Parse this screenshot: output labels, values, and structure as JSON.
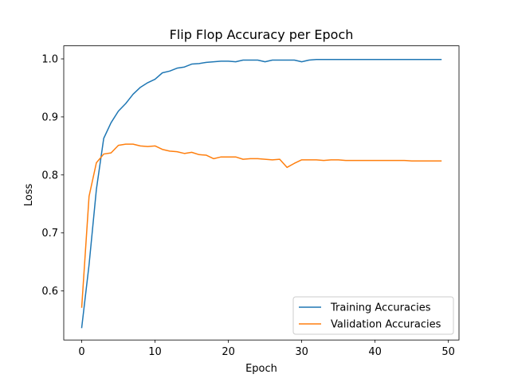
{
  "chart_data": {
    "type": "line",
    "title": "Flip Flop Accuracy per Epoch",
    "xlabel": "Epoch",
    "ylabel": "Loss",
    "xlim": [
      -2.45,
      51.45
    ],
    "ylim": [
      0.5155,
      1.0225
    ],
    "xticks": [
      0,
      10,
      20,
      30,
      40,
      50
    ],
    "xtick_labels": [
      "0",
      "10",
      "20",
      "30",
      "40",
      "50"
    ],
    "yticks": [
      0.6,
      0.7,
      0.8,
      0.9,
      1.0
    ],
    "ytick_labels": [
      "0.6",
      "0.7",
      "0.8",
      "0.9",
      "1.0"
    ],
    "grid": false,
    "legend_position": "lower-right",
    "x": [
      0,
      1,
      2,
      3,
      4,
      5,
      6,
      7,
      8,
      9,
      10,
      11,
      12,
      13,
      14,
      15,
      16,
      17,
      18,
      19,
      20,
      21,
      22,
      23,
      24,
      25,
      26,
      27,
      28,
      29,
      30,
      31,
      32,
      33,
      34,
      35,
      36,
      37,
      38,
      39,
      40,
      41,
      42,
      43,
      44,
      45,
      46,
      47,
      48,
      49
    ],
    "series": [
      {
        "name": "Training Accuracies",
        "color": "#1f77b4",
        "values": [
          0.537,
          0.645,
          0.775,
          0.863,
          0.89,
          0.91,
          0.923,
          0.939,
          0.951,
          0.959,
          0.965,
          0.976,
          0.979,
          0.984,
          0.986,
          0.991,
          0.992,
          0.994,
          0.995,
          0.996,
          0.996,
          0.995,
          0.998,
          0.998,
          0.998,
          0.995,
          0.998,
          0.998,
          0.998,
          0.998,
          0.995,
          0.998,
          0.999,
          0.999,
          0.999,
          0.999,
          0.999,
          0.999,
          0.999,
          0.999,
          0.999,
          0.999,
          0.999,
          0.999,
          0.999,
          0.999,
          0.999,
          0.999,
          0.999,
          0.999
        ]
      },
      {
        "name": "Validation Accuracies",
        "color": "#ff7f0e",
        "values": [
          0.572,
          0.763,
          0.821,
          0.836,
          0.838,
          0.851,
          0.853,
          0.853,
          0.85,
          0.849,
          0.85,
          0.844,
          0.841,
          0.84,
          0.837,
          0.839,
          0.835,
          0.834,
          0.828,
          0.831,
          0.831,
          0.831,
          0.827,
          0.828,
          0.828,
          0.827,
          0.826,
          0.827,
          0.813,
          0.82,
          0.826,
          0.826,
          0.826,
          0.825,
          0.826,
          0.826,
          0.825,
          0.825,
          0.825,
          0.825,
          0.825,
          0.825,
          0.825,
          0.825,
          0.825,
          0.824,
          0.824,
          0.824,
          0.824,
          0.824
        ]
      }
    ]
  }
}
